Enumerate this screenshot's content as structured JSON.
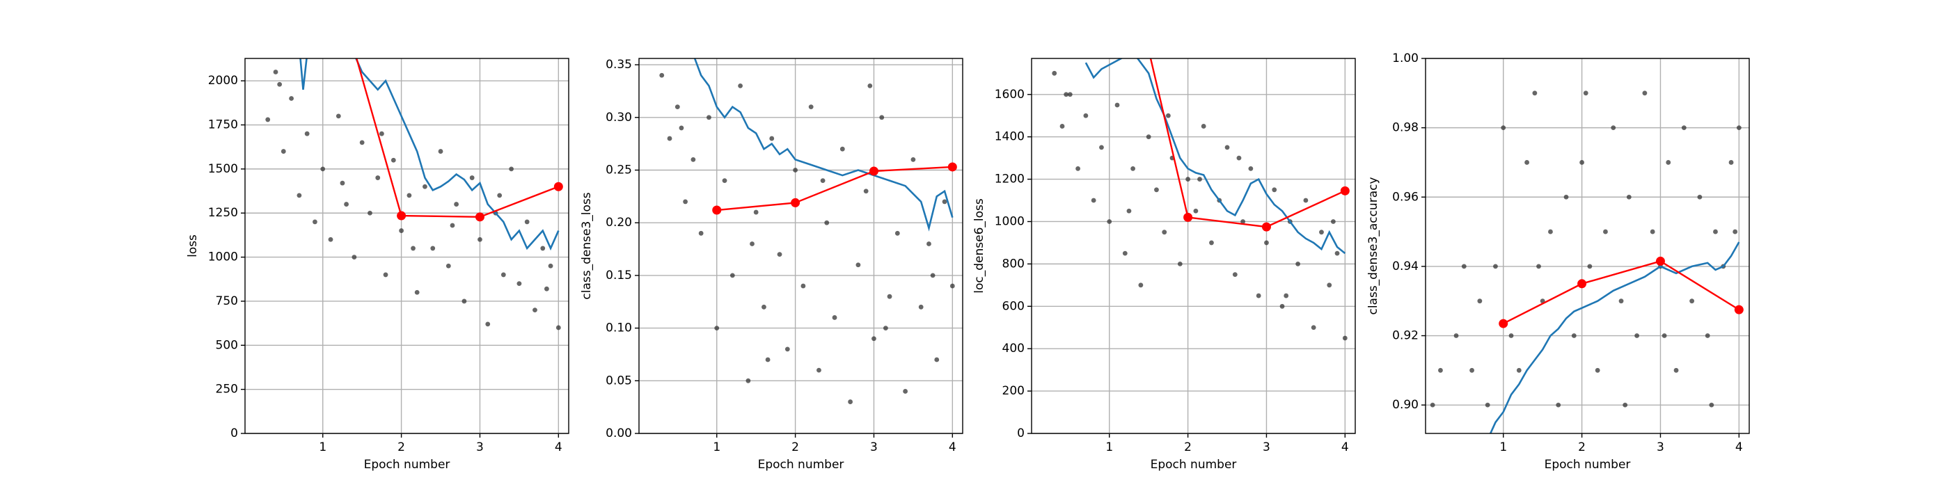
{
  "chart_data": [
    {
      "type": "line",
      "x_label": "Epoch number",
      "y_label": "loss",
      "grid": true,
      "xlim": [
        0.01,
        4.13
      ],
      "xticks": [
        1,
        2,
        3,
        4
      ],
      "ylim": [
        0,
        2127
      ],
      "yticks": [
        0,
        250,
        500,
        750,
        1000,
        1250,
        1500,
        1750,
        2000
      ],
      "series": [
        {
          "type": "scatter",
          "color": "#333333",
          "x": [
            0.3,
            0.4,
            0.5,
            0.6,
            0.7,
            0.8,
            0.9,
            1.0,
            1.1,
            1.2,
            1.3,
            1.4,
            1.5,
            1.6,
            1.7,
            1.8,
            1.9,
            2.0,
            2.1,
            2.2,
            2.3,
            2.4,
            2.5,
            2.6,
            2.7,
            2.8,
            2.9,
            3.0,
            3.1,
            3.2,
            3.3,
            3.4,
            3.5,
            3.6,
            3.7,
            3.8,
            3.9,
            4.0,
            0.45,
            1.25,
            2.15,
            3.25,
            3.85,
            2.65,
            1.75
          ],
          "values": [
            1780,
            2050,
            1600,
            1900,
            1350,
            1700,
            1200,
            1500,
            1100,
            1800,
            1300,
            1000,
            1650,
            1250,
            1450,
            900,
            1550,
            1150,
            1350,
            800,
            1400,
            1050,
            1600,
            950,
            1300,
            750,
            1450,
            1100,
            620,
            1250,
            900,
            1500,
            850,
            1200,
            700,
            1050,
            950,
            600,
            1980,
            1420,
            1050,
            1350,
            820,
            1180,
            1700
          ]
        },
        {
          "color": "#1f77b4",
          "x": [
            0.7,
            0.75,
            0.8,
            1.3,
            1.5,
            1.7,
            1.8,
            1.9,
            2.0,
            2.1,
            2.2,
            2.3,
            2.4,
            2.5,
            2.6,
            2.7,
            2.8,
            2.9,
            3.0,
            3.1,
            3.2,
            3.3,
            3.4,
            3.5,
            3.6,
            3.7,
            3.8,
            3.9,
            4.0
          ],
          "values": [
            2200,
            1950,
            2150,
            2250,
            2050,
            1950,
            2000,
            1900,
            1800,
            1700,
            1600,
            1450,
            1380,
            1400,
            1430,
            1470,
            1440,
            1380,
            1420,
            1300,
            1250,
            1200,
            1100,
            1150,
            1050,
            1100,
            1150,
            1050,
            1150
          ]
        },
        {
          "color": "#ff0000",
          "markers": true,
          "x": [
            1,
            2,
            3,
            4
          ],
          "values": [
            2800,
            1235,
            1228,
            1400
          ]
        }
      ]
    },
    {
      "type": "line",
      "x_label": "Epoch number",
      "y_label": "class_dense3_loss",
      "grid": true,
      "xlim": [
        0.01,
        4.13
      ],
      "xticks": [
        1,
        2,
        3,
        4
      ],
      "ylim": [
        0,
        0.356
      ],
      "yticks": [
        {
          "value": 0,
          "label": "0.00"
        },
        0.05,
        {
          "value": 0.1,
          "label": "0.10"
        },
        0.15,
        {
          "value": 0.2,
          "label": "0.20"
        },
        0.25,
        {
          "value": 0.3,
          "label": "0.30"
        },
        0.35
      ],
      "series": [
        {
          "type": "scatter",
          "color": "#333333",
          "x": [
            0.3,
            0.4,
            0.5,
            0.6,
            0.7,
            0.8,
            0.9,
            1.0,
            1.1,
            1.2,
            1.3,
            1.4,
            1.5,
            1.6,
            1.7,
            1.8,
            1.9,
            2.0,
            2.1,
            2.2,
            2.3,
            2.4,
            2.5,
            2.6,
            2.7,
            2.8,
            2.9,
            3.0,
            3.1,
            3.2,
            3.3,
            3.4,
            3.5,
            3.6,
            3.7,
            3.8,
            3.9,
            4.0,
            0.55,
            1.45,
            2.35,
            3.15,
            3.75,
            2.95,
            1.65
          ],
          "values": [
            0.34,
            0.28,
            0.31,
            0.22,
            0.26,
            0.19,
            0.3,
            0.1,
            0.24,
            0.15,
            0.33,
            0.05,
            0.21,
            0.12,
            0.28,
            0.17,
            0.08,
            0.25,
            0.14,
            0.31,
            0.06,
            0.2,
            0.11,
            0.27,
            0.03,
            0.16,
            0.23,
            0.09,
            0.3,
            0.13,
            0.19,
            0.04,
            0.26,
            0.12,
            0.18,
            0.07,
            0.22,
            0.14,
            0.29,
            0.18,
            0.24,
            0.1,
            0.15,
            0.33,
            0.07
          ]
        },
        {
          "color": "#1f77b4",
          "x": [
            0.7,
            0.8,
            0.9,
            1.0,
            1.1,
            1.2,
            1.3,
            1.4,
            1.5,
            1.6,
            1.7,
            1.8,
            1.9,
            2.0,
            2.2,
            2.4,
            2.6,
            2.8,
            3.0,
            3.2,
            3.4,
            3.6,
            3.7,
            3.8,
            3.9,
            4.0
          ],
          "values": [
            0.36,
            0.34,
            0.33,
            0.31,
            0.3,
            0.31,
            0.305,
            0.29,
            0.285,
            0.27,
            0.275,
            0.265,
            0.27,
            0.26,
            0.255,
            0.25,
            0.245,
            0.25,
            0.245,
            0.24,
            0.235,
            0.22,
            0.195,
            0.225,
            0.23,
            0.205
          ]
        },
        {
          "color": "#ff0000",
          "markers": true,
          "x": [
            1,
            2,
            3,
            4
          ],
          "values": [
            0.212,
            0.219,
            0.249,
            0.253
          ]
        }
      ]
    },
    {
      "type": "line",
      "x_label": "Epoch number",
      "y_label": "loc_dense6_loss",
      "grid": true,
      "xlim": [
        0.01,
        4.13
      ],
      "xticks": [
        1,
        2,
        3,
        4
      ],
      "ylim": [
        0,
        1770
      ],
      "yticks": [
        0,
        200,
        400,
        600,
        800,
        1000,
        1200,
        1400,
        1600
      ],
      "series": [
        {
          "type": "scatter",
          "color": "#333333",
          "x": [
            0.3,
            0.4,
            0.5,
            0.6,
            0.7,
            0.8,
            0.9,
            1.0,
            1.1,
            1.2,
            1.3,
            1.4,
            1.5,
            1.6,
            1.7,
            1.8,
            1.9,
            2.0,
            2.1,
            2.2,
            2.3,
            2.4,
            2.5,
            2.6,
            2.7,
            2.8,
            2.9,
            3.0,
            3.1,
            3.2,
            3.3,
            3.4,
            3.5,
            3.6,
            3.7,
            3.8,
            3.9,
            4.0,
            0.45,
            1.25,
            2.15,
            3.25,
            3.85,
            2.65,
            1.75
          ],
          "values": [
            1700,
            1450,
            1600,
            1250,
            1500,
            1100,
            1350,
            1000,
            1550,
            850,
            1250,
            700,
            1400,
            1150,
            950,
            1300,
            800,
            1200,
            1050,
            1450,
            900,
            1100,
            1350,
            750,
            1000,
            1250,
            650,
            900,
            1150,
            600,
            1000,
            800,
            1100,
            500,
            950,
            700,
            850,
            450,
            1600,
            1050,
            1200,
            650,
            1000,
            1300,
            1500
          ]
        },
        {
          "color": "#1f77b4",
          "x": [
            0.7,
            0.8,
            0.9,
            1.3,
            1.5,
            1.6,
            1.7,
            1.8,
            1.9,
            2.0,
            2.1,
            2.2,
            2.3,
            2.4,
            2.5,
            2.6,
            2.7,
            2.8,
            2.9,
            3.0,
            3.1,
            3.2,
            3.3,
            3.4,
            3.5,
            3.6,
            3.7,
            3.8,
            3.9,
            4.0
          ],
          "values": [
            1750,
            1680,
            1720,
            1800,
            1700,
            1580,
            1500,
            1400,
            1300,
            1250,
            1230,
            1220,
            1150,
            1100,
            1050,
            1030,
            1100,
            1180,
            1200,
            1130,
            1080,
            1050,
            1000,
            950,
            920,
            900,
            870,
            950,
            880,
            850
          ]
        },
        {
          "color": "#ff0000",
          "markers": true,
          "x": [
            1,
            2,
            3,
            4
          ],
          "values": [
            2600,
            1020,
            975,
            1145
          ]
        }
      ]
    },
    {
      "type": "line",
      "x_label": "Epoch number",
      "y_label": "class_dense3_accuracy",
      "grid": true,
      "xlim": [
        0.01,
        4.13
      ],
      "xticks": [
        1,
        2,
        3,
        4
      ],
      "ylim": [
        0.8918,
        1.0
      ],
      "yticks": [
        {
          "value": 0.9,
          "label": "0.90"
        },
        0.92,
        0.94,
        0.96,
        0.98,
        {
          "value": 1.0,
          "label": "1.00"
        }
      ],
      "series": [
        {
          "type": "scatter",
          "color": "#333333",
          "x": [
            0.1,
            0.2,
            0.4,
            0.5,
            0.6,
            0.7,
            0.8,
            0.9,
            1.0,
            1.1,
            1.2,
            1.3,
            1.4,
            1.5,
            1.6,
            1.7,
            1.8,
            1.9,
            2.0,
            2.1,
            2.2,
            2.3,
            2.4,
            2.5,
            2.6,
            2.7,
            2.8,
            2.9,
            3.0,
            3.1,
            3.2,
            3.3,
            3.4,
            3.5,
            3.6,
            3.7,
            3.8,
            3.9,
            4.0,
            1.45,
            2.55,
            3.65,
            2.05,
            3.05,
            3.95
          ],
          "values": [
            0.9,
            0.91,
            0.92,
            0.94,
            0.91,
            0.93,
            0.9,
            0.94,
            0.98,
            0.92,
            0.91,
            0.97,
            0.99,
            0.93,
            0.95,
            0.9,
            0.96,
            0.92,
            0.97,
            0.94,
            0.91,
            0.95,
            0.98,
            0.93,
            0.96,
            0.92,
            0.99,
            0.95,
            0.94,
            0.97,
            0.91,
            0.98,
            0.93,
            0.96,
            0.92,
            0.95,
            0.94,
            0.97,
            0.98,
            0.94,
            0.9,
            0.9,
            0.99,
            0.92,
            0.95
          ]
        },
        {
          "color": "#1f77b4",
          "x": [
            0.8,
            0.9,
            1.0,
            1.1,
            1.2,
            1.3,
            1.4,
            1.5,
            1.6,
            1.7,
            1.8,
            1.9,
            2.0,
            2.2,
            2.4,
            2.6,
            2.8,
            3.0,
            3.2,
            3.4,
            3.6,
            3.7,
            3.8,
            3.9,
            4.0
          ],
          "values": [
            0.89,
            0.895,
            0.898,
            0.903,
            0.906,
            0.91,
            0.913,
            0.916,
            0.92,
            0.922,
            0.925,
            0.927,
            0.928,
            0.93,
            0.933,
            0.935,
            0.937,
            0.94,
            0.938,
            0.94,
            0.941,
            0.939,
            0.94,
            0.943,
            0.947
          ]
        },
        {
          "color": "#ff0000",
          "markers": true,
          "x": [
            1,
            2,
            3,
            4
          ],
          "values": [
            0.9235,
            0.935,
            0.9415,
            0.9275
          ]
        }
      ]
    }
  ]
}
